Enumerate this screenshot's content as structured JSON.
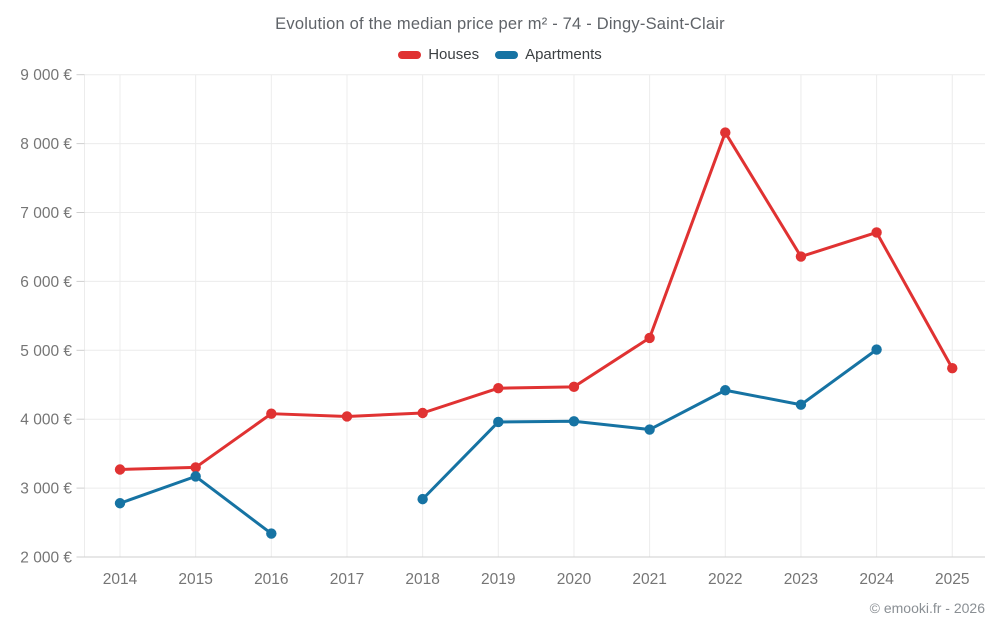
{
  "title": "Evolution of the median price per m² - 74 - Dingy-Saint-Clair",
  "legend": [
    {
      "label": "Houses",
      "color": "#e03232"
    },
    {
      "label": "Apartments",
      "color": "#1673a3"
    }
  ],
  "copyright": "© emooki.fr - 2026",
  "colors": {
    "houses": "#e03232",
    "apartments": "#1673a3",
    "axis_text": "#757575",
    "gridline": "#ececec",
    "axis_line": "#cfcfcf"
  },
  "chart_data": {
    "type": "line",
    "title": "Evolution of the median price per m² - 74 - Dingy-Saint-Clair",
    "x": [
      2014,
      2015,
      2016,
      2017,
      2018,
      2019,
      2020,
      2021,
      2022,
      2023,
      2024,
      2025
    ],
    "series": [
      {
        "name": "Houses",
        "color": "#e03232",
        "values": [
          3270,
          3300,
          4080,
          4040,
          4090,
          4450,
          4470,
          5180,
          8160,
          6360,
          6710,
          4740
        ]
      },
      {
        "name": "Apartments",
        "color": "#1673a3",
        "values": [
          2780,
          3170,
          2340,
          null,
          2840,
          3960,
          3970,
          3850,
          4420,
          4210,
          5010,
          null
        ]
      }
    ],
    "xlabel": "",
    "ylabel": "",
    "ylim": [
      2000,
      9000
    ],
    "yticks": [
      {
        "value": 2000,
        "label": "2 000 €"
      },
      {
        "value": 3000,
        "label": "3 000 €"
      },
      {
        "value": 4000,
        "label": "4 000 €"
      },
      {
        "value": 5000,
        "label": "5 000 €"
      },
      {
        "value": 6000,
        "label": "6 000 €"
      },
      {
        "value": 7000,
        "label": "7 000 €"
      },
      {
        "value": 8000,
        "label": "8 000 €"
      },
      {
        "value": 9000,
        "label": "9 000 €"
      }
    ],
    "grid": true,
    "legend_position": "top",
    "marker": "circle"
  }
}
